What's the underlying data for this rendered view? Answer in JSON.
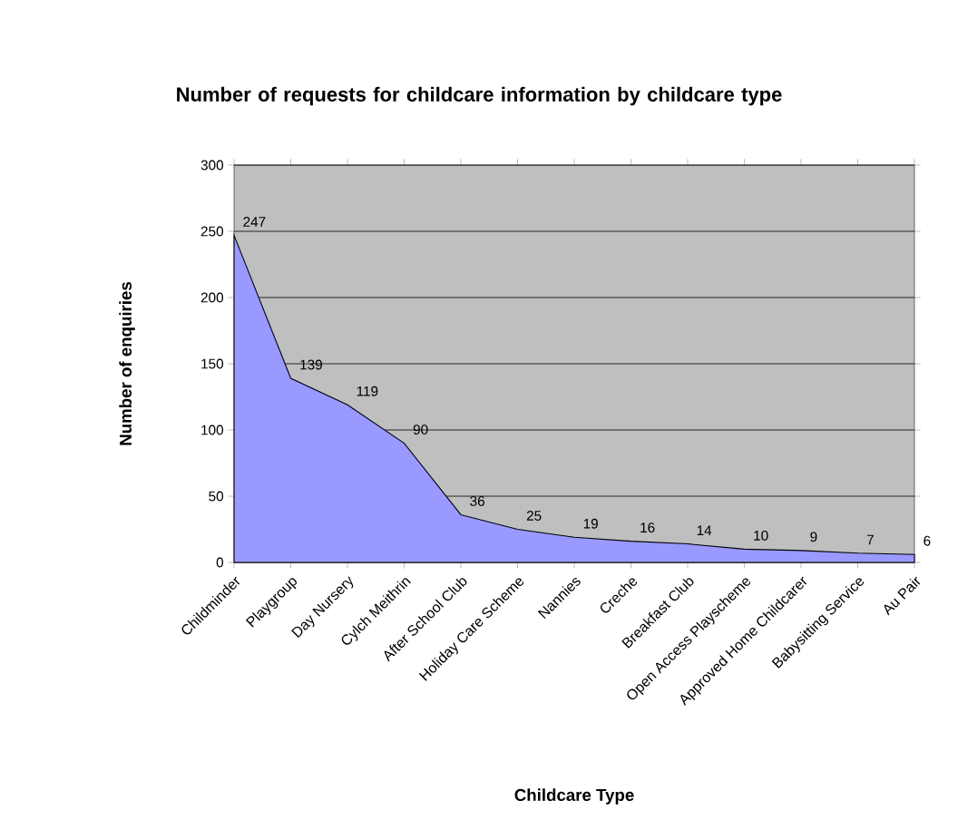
{
  "chart_data": {
    "type": "area",
    "title": "Number of requests for childcare information by childcare type",
    "xlabel": "Childcare Type",
    "ylabel": "Number of enquiries",
    "categories": [
      "Childminder",
      "Playgroup",
      "Day Nursery",
      "Cylch Meithrin",
      "After School Club",
      "Holiday Care Scheme",
      "Nannies",
      "Creche",
      "Breakfast Club",
      "Open Access Playscheme",
      "Approved Home Childcarer",
      "Babysitting Service",
      "Au Pair"
    ],
    "values": [
      247,
      139,
      119,
      90,
      36,
      25,
      19,
      16,
      14,
      10,
      9,
      7,
      6
    ],
    "color": "#9999ff",
    "ylim": [
      0,
      300
    ],
    "yticks": [
      0,
      50,
      100,
      150,
      200,
      250,
      300
    ],
    "grid": "y",
    "data_labels": true
  }
}
